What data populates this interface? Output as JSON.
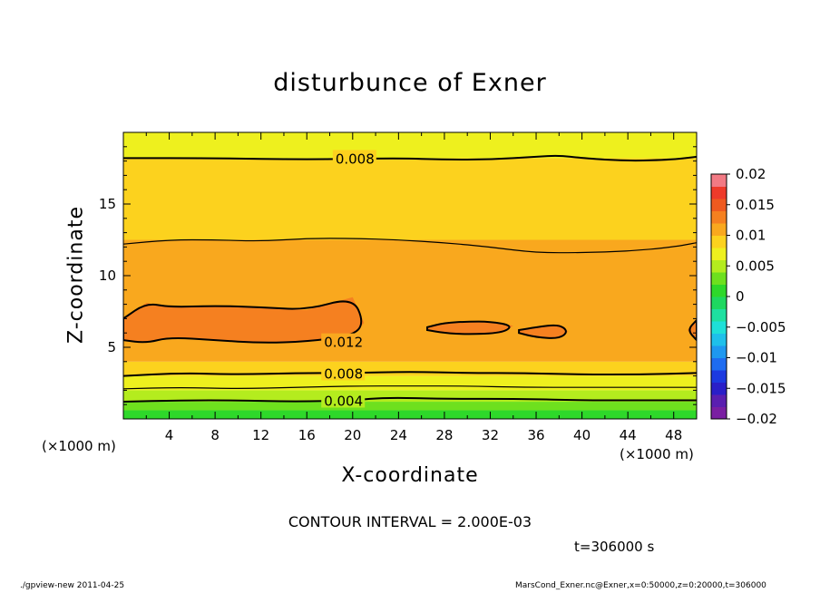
{
  "chart_data": {
    "type": "heatmap",
    "title": "disturbunce of Exner",
    "xlabel": "X-coordinate",
    "ylabel": "Z-coordinate",
    "x_unit_label_left": "(×1000 m)",
    "x_unit_label_right": "(×1000 m)",
    "xlim": [
      0,
      50
    ],
    "ylim": [
      0,
      20
    ],
    "x_ticks": [
      4,
      8,
      12,
      16,
      20,
      24,
      28,
      32,
      36,
      40,
      44,
      48
    ],
    "y_ticks": [
      5,
      10,
      15
    ],
    "grid": false,
    "colorbar": {
      "location": "right",
      "ticks": [
        "0.02",
        "0.015",
        "0.01",
        "0.005",
        "0",
        "-0.005",
        "-0.01",
        "-0.015",
        "-0.02"
      ],
      "levels": [
        {
          "from": -0.02,
          "to": -0.018,
          "color": "#7a1fa2"
        },
        {
          "from": -0.018,
          "to": -0.016,
          "color": "#5a1fb0"
        },
        {
          "from": -0.016,
          "to": -0.014,
          "color": "#2a1fc8"
        },
        {
          "from": -0.014,
          "to": -0.012,
          "color": "#1c3ae0"
        },
        {
          "from": -0.012,
          "to": -0.01,
          "color": "#1e6cf0"
        },
        {
          "from": -0.01,
          "to": -0.008,
          "color": "#1e98f0"
        },
        {
          "from": -0.008,
          "to": -0.006,
          "color": "#1ec0ea"
        },
        {
          "from": -0.006,
          "to": -0.004,
          "color": "#1ee0d8"
        },
        {
          "from": -0.004,
          "to": -0.002,
          "color": "#1ee0a0"
        },
        {
          "from": -0.002,
          "to": 0.0,
          "color": "#1ed860"
        },
        {
          "from": 0.0,
          "to": 0.002,
          "color": "#2ed82a"
        },
        {
          "from": 0.002,
          "to": 0.004,
          "color": "#6ee01e"
        },
        {
          "from": 0.004,
          "to": 0.006,
          "color": "#b4ec1e"
        },
        {
          "from": 0.006,
          "to": 0.008,
          "color": "#eef01e"
        },
        {
          "from": 0.008,
          "to": 0.01,
          "color": "#fcd21e"
        },
        {
          "from": 0.01,
          "to": 0.012,
          "color": "#f9a81e"
        },
        {
          "from": 0.012,
          "to": 0.014,
          "color": "#f58020"
        },
        {
          "from": 0.014,
          "to": 0.016,
          "color": "#ef5a20"
        },
        {
          "from": 0.016,
          "to": 0.018,
          "color": "#ee3a2a"
        },
        {
          "from": 0.018,
          "to": 0.02,
          "color": "#f27a84"
        }
      ]
    },
    "bands": [
      {
        "z_from": 0.0,
        "z_to": 0.6,
        "value_range": [
          0.0,
          0.002
        ]
      },
      {
        "z_from": 0.6,
        "z_to": 1.2,
        "value_range": [
          0.002,
          0.004
        ]
      },
      {
        "z_from": 1.2,
        "z_to": 2.0,
        "value_range": [
          0.004,
          0.006
        ]
      },
      {
        "z_from": 2.0,
        "z_to": 3.0,
        "value_range": [
          0.006,
          0.008
        ]
      },
      {
        "z_from": 3.0,
        "z_to": 4.0,
        "value_range": [
          0.008,
          0.01
        ]
      },
      {
        "z_from": 4.0,
        "z_to": 10.0,
        "value_range": [
          0.01,
          0.012
        ]
      },
      {
        "z_from": 10.0,
        "z_to": 12.5,
        "value_range": [
          0.01,
          0.011
        ]
      },
      {
        "z_from": 12.5,
        "z_to": 18.2,
        "value_range": [
          0.008,
          0.01
        ]
      },
      {
        "z_from": 18.2,
        "z_to": 20.0,
        "value_range": [
          0.006,
          0.008
        ]
      }
    ],
    "contour_lines": [
      {
        "level": "0.004",
        "x": [
          0,
          5,
          10,
          15,
          20,
          23,
          28,
          35,
          40,
          45,
          50
        ],
        "z": [
          1.2,
          1.3,
          1.3,
          1.2,
          1.3,
          1.5,
          1.4,
          1.4,
          1.3,
          1.3,
          1.3
        ]
      },
      {
        "level": "0.006",
        "x": [
          0,
          5,
          10,
          15,
          20,
          25,
          30,
          35,
          40,
          45,
          50
        ],
        "z": [
          2.1,
          2.2,
          2.1,
          2.2,
          2.3,
          2.3,
          2.3,
          2.2,
          2.2,
          2.2,
          2.2
        ]
      },
      {
        "level": "0.008",
        "x": [
          0,
          5,
          10,
          15,
          20,
          25,
          30,
          35,
          40,
          45,
          50
        ],
        "z": [
          3.0,
          3.2,
          3.1,
          3.2,
          3.2,
          3.3,
          3.2,
          3.2,
          3.1,
          3.1,
          3.2
        ]
      },
      {
        "level": "0.010",
        "x": [
          0,
          4,
          8,
          12,
          16,
          20,
          24,
          28,
          32,
          36,
          40,
          44,
          48,
          50
        ],
        "z": [
          12.2,
          12.5,
          12.5,
          12.4,
          12.6,
          12.6,
          12.5,
          12.3,
          12.0,
          11.6,
          11.6,
          11.7,
          12.0,
          12.3
        ]
      },
      {
        "level": "0.008",
        "x": [
          0,
          8,
          16,
          24,
          28,
          32,
          36,
          38,
          40,
          44,
          48,
          50
        ],
        "z": [
          18.2,
          18.2,
          18.1,
          18.2,
          18.1,
          18.1,
          18.3,
          18.4,
          18.2,
          18.0,
          18.1,
          18.3
        ]
      },
      {
        "level": "0.012",
        "closed": true,
        "x": [
          0,
          2,
          4,
          8,
          12,
          16,
          20,
          21,
          20,
          16,
          12,
          8,
          4,
          2,
          0
        ],
        "z": [
          7.0,
          8.1,
          7.8,
          7.9,
          7.8,
          7.6,
          8.5,
          6.7,
          5.8,
          5.4,
          5.3,
          5.5,
          5.7,
          5.3,
          5.5
        ]
      },
      {
        "level": "0.012",
        "closed": true,
        "x": [
          26.5,
          28,
          30,
          32,
          34,
          33,
          30,
          28,
          26.5
        ],
        "z": [
          6.4,
          6.7,
          6.8,
          6.8,
          6.5,
          6.0,
          5.9,
          6.0,
          6.2
        ]
      },
      {
        "level": "0.012",
        "closed": true,
        "x": [
          34.5,
          36,
          38,
          38.8,
          38,
          36,
          34.5
        ],
        "z": [
          6.2,
          6.4,
          6.6,
          6.1,
          5.6,
          5.7,
          6.0
        ]
      },
      {
        "level": "0.012",
        "closed": true,
        "x": [
          50,
          49.2,
          50
        ],
        "z": [
          6.9,
          6.2,
          5.5
        ]
      }
    ],
    "contour_labels": [
      {
        "text": "0.008",
        "x": 18.5,
        "z": 18.2
      },
      {
        "text": "0.012",
        "x": 17.5,
        "z": 5.4
      },
      {
        "text": "0.008",
        "x": 17.5,
        "z": 3.2
      },
      {
        "text": "0.004",
        "x": 17.5,
        "z": 1.3
      }
    ]
  },
  "annotations": {
    "contour_interval": "CONTOUR INTERVAL = 2.000E-03",
    "time": "t=306000 s",
    "footer_left": "./gpview-new   2011-04-25",
    "footer_right": "MarsCond_Exner.nc@Exner,x=0:50000,z=0:20000,t=306000"
  }
}
